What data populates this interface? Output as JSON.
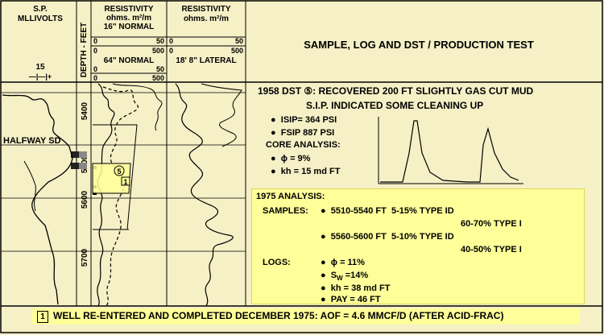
{
  "header": {
    "sp_title": "S.P.",
    "sp_units": "MLLIVOLTS",
    "sp_scale": "15",
    "sp_scale_marks": "—|—|+",
    "depth_label": "DEPTH - FEET",
    "res1_title": "RESISTIVITY",
    "res1_units": "ohms. m²/m",
    "res1_curve1": "16\" NORMAL",
    "res1_curve1_min": "0",
    "res1_curve1_max": "50",
    "res1_curve1_alt_min": "0",
    "res1_curve1_alt_max": "500",
    "res1_curve2": "64\" NORMAL",
    "res1_curve2_min": "0",
    "res1_curve2_max": "50",
    "res1_curve2_alt_min": "0",
    "res1_curve2_alt_max": "500",
    "res2_title": "RESISTIVITY",
    "res2_units": "ohms. m²/m",
    "res2_curve1_min": "0",
    "res2_curve1_max": "50",
    "res2_curve1_alt_min": "0",
    "res2_curve1_alt_max": "500",
    "res2_curve2": "18' 8\" LATERAL",
    "panel_title": "SAMPLE, LOG AND DST / PRODUCTION TEST"
  },
  "depths": [
    "5400",
    "5500",
    "5600",
    "5700"
  ],
  "formation_label": "HALFWAY SD",
  "markers": {
    "dst": "5",
    "completion": "1"
  },
  "dst": {
    "title": "1958 DST ⑤:  RECOVERED 200 FT SLIGHTLY GAS CUT MUD",
    "subtitle": "S.I.P. INDICATED SOME CLEANING UP",
    "isip": "ISIP= 364 PSI",
    "fsip": "FSIP 887 PSI",
    "core_title": "CORE ANALYSIS:",
    "porosity": "ϕ = 9%",
    "kh": "kh = 15 md FT"
  },
  "analysis": {
    "title": "1975 ANALYSIS:",
    "samples_label": "SAMPLES:",
    "sample1_range": "5510-5540 FT",
    "sample1_a": "5-15% TYPE ID",
    "sample1_b": "60-70% TYPE I",
    "sample2_range": "5560-5600 FT",
    "sample2_a": "5-10% TYPE ID",
    "sample2_b": "40-50% TYPE I",
    "logs_label": "LOGS:",
    "log1": "ϕ = 11%",
    "log2_sym": "S",
    "log2_sub": "W",
    "log2_val": " =14%",
    "log3": "kh = 38 md FT",
    "log4": "PAY = 46 FT"
  },
  "footer": {
    "marker": "1",
    "text": "WELL RE-ENTERED AND COMPLETED DECEMBER 1975: AOF = 4.6 MMCF/D (AFTER ACID-FRAC)"
  },
  "colors": {
    "background": "#f5f0c6",
    "highlight": "#ffff99",
    "line": "#000000"
  }
}
